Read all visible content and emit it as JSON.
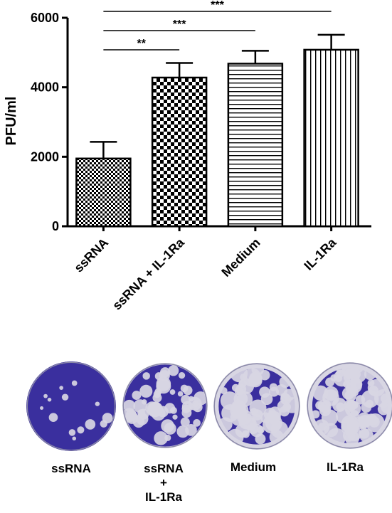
{
  "chart_data": {
    "type": "bar",
    "ylabel": "PFU/ml",
    "xlabel": "",
    "title": "",
    "ylim": [
      0,
      6000
    ],
    "yticks": [
      0,
      2000,
      4000,
      6000
    ],
    "ytick_labels": [
      "0",
      "2000",
      "4000",
      "6000"
    ],
    "categories": [
      "ssRNA",
      "ssRNA + IL-1Ra",
      "Medium",
      "IL-1Ra"
    ],
    "values": [
      1950,
      4280,
      4680,
      5080
    ],
    "errors": [
      480,
      420,
      370,
      430
    ],
    "patterns": [
      "fine-checker",
      "coarse-checker",
      "horizontal-lines",
      "vertical-lines"
    ],
    "significance": [
      {
        "from": 0,
        "to": 1,
        "label": "**"
      },
      {
        "from": 0,
        "to": 2,
        "label": "***"
      },
      {
        "from": 0,
        "to": 3,
        "label": "***"
      }
    ],
    "grid": false,
    "legend": "none"
  },
  "plates": {
    "labels": [
      [
        "ssRNA"
      ],
      [
        "ssRNA",
        "+",
        "IL-1Ra"
      ],
      [
        "Medium"
      ],
      [
        "IL-1Ra"
      ]
    ],
    "stain_color": "#3a2f9e",
    "plaque_color": "#d8d6e3"
  }
}
